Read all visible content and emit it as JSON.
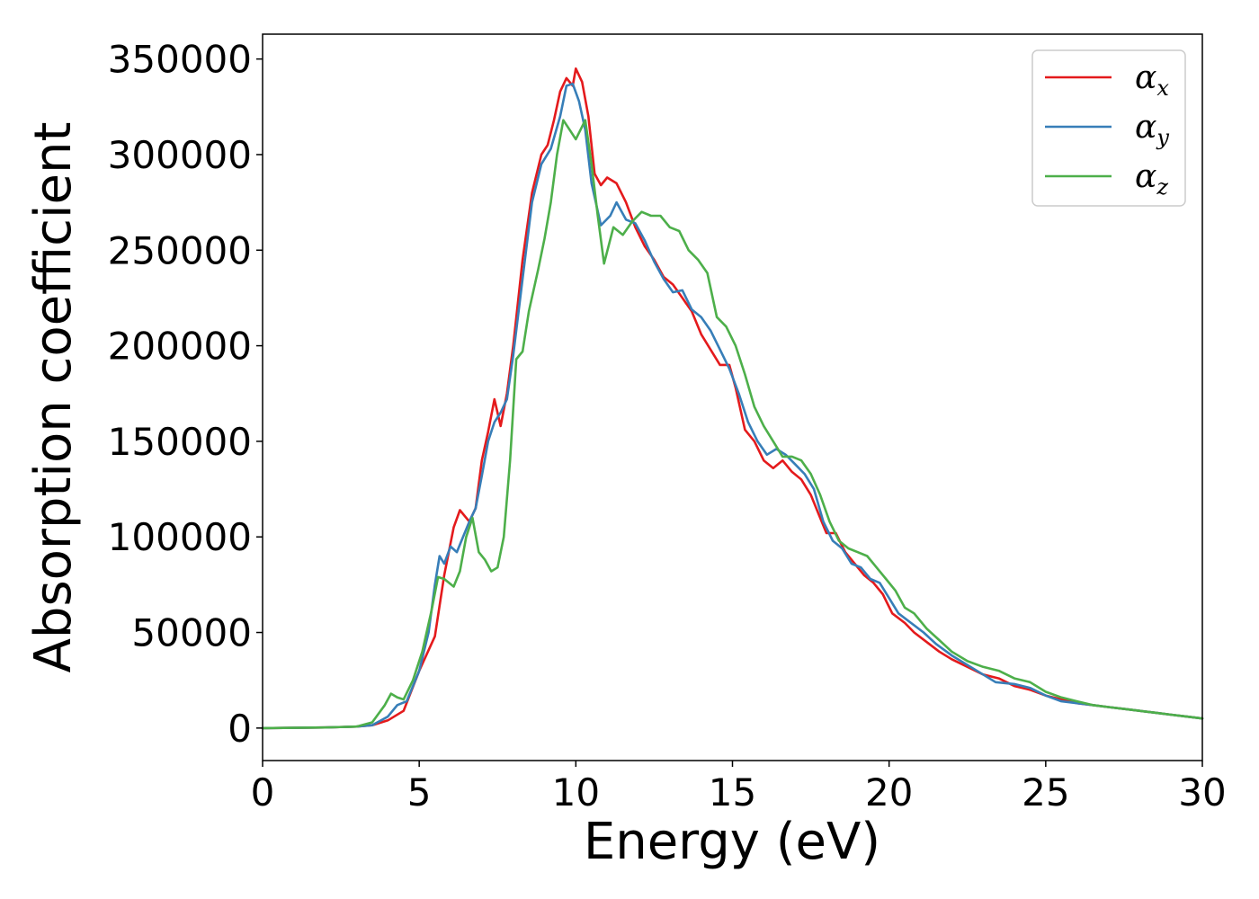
{
  "chart_data": {
    "type": "line",
    "title": "",
    "xlabel": "Energy (eV)",
    "ylabel": "Absorption coefficient",
    "xlim": [
      0,
      30
    ],
    "ylim": [
      -17000,
      363000
    ],
    "xticks": [
      0,
      5,
      10,
      15,
      20,
      25,
      30
    ],
    "xtick_labels": [
      "0",
      "5",
      "10",
      "15",
      "20",
      "25",
      "30"
    ],
    "yticks": [
      0,
      50000,
      100000,
      150000,
      200000,
      250000,
      300000,
      350000
    ],
    "ytick_labels": [
      "0",
      "50000",
      "100000",
      "150000",
      "200000",
      "250000",
      "300000",
      "350000"
    ],
    "grid": false,
    "legend_position": "top-right",
    "series": [
      {
        "name": "αx",
        "name_base": "α",
        "name_sub": "x",
        "color": "#e41a1c",
        "points": [
          [
            0,
            0
          ],
          [
            2,
            300
          ],
          [
            3,
            800
          ],
          [
            3.5,
            1500
          ],
          [
            4,
            4000
          ],
          [
            4.5,
            9000
          ],
          [
            5,
            30000
          ],
          [
            5.5,
            48000
          ],
          [
            5.8,
            80000
          ],
          [
            6.1,
            105000
          ],
          [
            6.3,
            114000
          ],
          [
            6.6,
            108000
          ],
          [
            6.8,
            115000
          ],
          [
            7,
            140000
          ],
          [
            7.2,
            155000
          ],
          [
            7.4,
            172000
          ],
          [
            7.6,
            158000
          ],
          [
            7.8,
            175000
          ],
          [
            8,
            200000
          ],
          [
            8.3,
            245000
          ],
          [
            8.6,
            280000
          ],
          [
            8.9,
            300000
          ],
          [
            9.1,
            305000
          ],
          [
            9.3,
            318000
          ],
          [
            9.5,
            333000
          ],
          [
            9.7,
            340000
          ],
          [
            9.9,
            336000
          ],
          [
            10,
            345000
          ],
          [
            10.2,
            338000
          ],
          [
            10.4,
            320000
          ],
          [
            10.6,
            290000
          ],
          [
            10.8,
            284000
          ],
          [
            11,
            288000
          ],
          [
            11.3,
            285000
          ],
          [
            11.6,
            275000
          ],
          [
            11.9,
            262000
          ],
          [
            12.2,
            252000
          ],
          [
            12.5,
            245000
          ],
          [
            12.8,
            236000
          ],
          [
            13.1,
            232000
          ],
          [
            13.4,
            225000
          ],
          [
            13.7,
            218000
          ],
          [
            14,
            206000
          ],
          [
            14.3,
            198000
          ],
          [
            14.6,
            190000
          ],
          [
            14.9,
            190000
          ],
          [
            15.1,
            178000
          ],
          [
            15.4,
            156000
          ],
          [
            15.7,
            150000
          ],
          [
            16,
            140000
          ],
          [
            16.3,
            136000
          ],
          [
            16.6,
            140000
          ],
          [
            16.9,
            134000
          ],
          [
            17.2,
            130000
          ],
          [
            17.5,
            122000
          ],
          [
            17.8,
            110000
          ],
          [
            18,
            102000
          ],
          [
            18.3,
            102000
          ],
          [
            18.6,
            92000
          ],
          [
            18.9,
            86000
          ],
          [
            19.2,
            80000
          ],
          [
            19.5,
            76000
          ],
          [
            19.8,
            70000
          ],
          [
            20.1,
            60000
          ],
          [
            20.5,
            55000
          ],
          [
            20.8,
            50000
          ],
          [
            21.2,
            45000
          ],
          [
            21.6,
            40000
          ],
          [
            22,
            36000
          ],
          [
            22.5,
            32000
          ],
          [
            23,
            28000
          ],
          [
            23.5,
            26000
          ],
          [
            24,
            22000
          ],
          [
            24.5,
            20000
          ],
          [
            25,
            17000
          ],
          [
            25.5,
            15000
          ],
          [
            26,
            13000
          ],
          [
            26.5,
            12000
          ],
          [
            27,
            11000
          ],
          [
            27.5,
            10000
          ],
          [
            28,
            9000
          ],
          [
            28.5,
            8000
          ],
          [
            29,
            7000
          ],
          [
            29.5,
            6000
          ],
          [
            30,
            5000
          ]
        ]
      },
      {
        "name": "αy",
        "name_base": "α",
        "name_sub": "y",
        "color": "#377eb8",
        "points": [
          [
            0,
            0
          ],
          [
            2,
            300
          ],
          [
            3,
            800
          ],
          [
            3.5,
            1500
          ],
          [
            4,
            6000
          ],
          [
            4.3,
            12000
          ],
          [
            4.6,
            14000
          ],
          [
            5,
            30000
          ],
          [
            5.3,
            50000
          ],
          [
            5.5,
            75000
          ],
          [
            5.65,
            90000
          ],
          [
            5.8,
            86000
          ],
          [
            6,
            95000
          ],
          [
            6.2,
            92000
          ],
          [
            6.4,
            100000
          ],
          [
            6.6,
            108000
          ],
          [
            6.8,
            115000
          ],
          [
            7,
            132000
          ],
          [
            7.2,
            150000
          ],
          [
            7.4,
            160000
          ],
          [
            7.6,
            165000
          ],
          [
            7.8,
            172000
          ],
          [
            8,
            195000
          ],
          [
            8.3,
            235000
          ],
          [
            8.6,
            275000
          ],
          [
            8.9,
            295000
          ],
          [
            9.2,
            303000
          ],
          [
            9.5,
            320000
          ],
          [
            9.7,
            336000
          ],
          [
            9.9,
            337000
          ],
          [
            10.1,
            328000
          ],
          [
            10.3,
            313000
          ],
          [
            10.5,
            285000
          ],
          [
            10.8,
            263000
          ],
          [
            11.1,
            268000
          ],
          [
            11.3,
            275000
          ],
          [
            11.6,
            266000
          ],
          [
            11.9,
            264000
          ],
          [
            12.2,
            255000
          ],
          [
            12.5,
            244000
          ],
          [
            12.8,
            235000
          ],
          [
            13.1,
            228000
          ],
          [
            13.4,
            229000
          ],
          [
            13.7,
            219000
          ],
          [
            14,
            215000
          ],
          [
            14.3,
            208000
          ],
          [
            14.6,
            198000
          ],
          [
            14.9,
            188000
          ],
          [
            15.2,
            175000
          ],
          [
            15.5,
            160000
          ],
          [
            15.8,
            150000
          ],
          [
            16.1,
            143000
          ],
          [
            16.4,
            146000
          ],
          [
            16.7,
            143000
          ],
          [
            17,
            138000
          ],
          [
            17.3,
            133000
          ],
          [
            17.6,
            125000
          ],
          [
            17.9,
            108000
          ],
          [
            18.2,
            98000
          ],
          [
            18.5,
            94000
          ],
          [
            18.8,
            86000
          ],
          [
            19.1,
            84000
          ],
          [
            19.4,
            78000
          ],
          [
            19.7,
            76000
          ],
          [
            20,
            68000
          ],
          [
            20.3,
            60000
          ],
          [
            20.7,
            55000
          ],
          [
            21.1,
            50000
          ],
          [
            21.5,
            44000
          ],
          [
            22,
            38000
          ],
          [
            22.5,
            33000
          ],
          [
            23,
            28000
          ],
          [
            23.4,
            24000
          ],
          [
            24,
            23000
          ],
          [
            24.5,
            21000
          ],
          [
            25,
            17000
          ],
          [
            25.5,
            14000
          ],
          [
            26,
            13000
          ],
          [
            26.5,
            12000
          ],
          [
            27,
            11000
          ],
          [
            27.5,
            10000
          ],
          [
            28,
            9000
          ],
          [
            28.5,
            8000
          ],
          [
            29,
            7000
          ],
          [
            29.5,
            6000
          ],
          [
            30,
            5000
          ]
        ]
      },
      {
        "name": "αz",
        "name_base": "α",
        "name_sub": "z",
        "color": "#4daf4a",
        "points": [
          [
            0,
            0
          ],
          [
            2,
            300
          ],
          [
            3,
            800
          ],
          [
            3.5,
            3000
          ],
          [
            3.9,
            12000
          ],
          [
            4.1,
            18000
          ],
          [
            4.3,
            16000
          ],
          [
            4.5,
            15000
          ],
          [
            4.8,
            25000
          ],
          [
            5.1,
            40000
          ],
          [
            5.4,
            62000
          ],
          [
            5.6,
            79000
          ],
          [
            5.8,
            78000
          ],
          [
            6.1,
            74000
          ],
          [
            6.3,
            82000
          ],
          [
            6.5,
            100000
          ],
          [
            6.7,
            110000
          ],
          [
            6.9,
            92000
          ],
          [
            7.1,
            88000
          ],
          [
            7.3,
            82000
          ],
          [
            7.5,
            84000
          ],
          [
            7.7,
            100000
          ],
          [
            7.9,
            140000
          ],
          [
            8.1,
            193000
          ],
          [
            8.3,
            197000
          ],
          [
            8.5,
            218000
          ],
          [
            8.8,
            240000
          ],
          [
            9,
            256000
          ],
          [
            9.2,
            275000
          ],
          [
            9.4,
            300000
          ],
          [
            9.6,
            318000
          ],
          [
            9.8,
            313000
          ],
          [
            10,
            308000
          ],
          [
            10.3,
            318000
          ],
          [
            10.5,
            295000
          ],
          [
            10.7,
            268000
          ],
          [
            10.9,
            243000
          ],
          [
            11.2,
            262000
          ],
          [
            11.5,
            258000
          ],
          [
            11.8,
            265000
          ],
          [
            12.1,
            270000
          ],
          [
            12.4,
            268000
          ],
          [
            12.7,
            268000
          ],
          [
            13,
            262000
          ],
          [
            13.3,
            260000
          ],
          [
            13.6,
            250000
          ],
          [
            13.9,
            245000
          ],
          [
            14.2,
            238000
          ],
          [
            14.5,
            215000
          ],
          [
            14.8,
            210000
          ],
          [
            15.1,
            200000
          ],
          [
            15.4,
            185000
          ],
          [
            15.7,
            168000
          ],
          [
            16,
            158000
          ],
          [
            16.3,
            150000
          ],
          [
            16.6,
            142000
          ],
          [
            16.9,
            142000
          ],
          [
            17.2,
            140000
          ],
          [
            17.5,
            133000
          ],
          [
            17.8,
            122000
          ],
          [
            18.1,
            108000
          ],
          [
            18.4,
            98000
          ],
          [
            18.7,
            94000
          ],
          [
            19,
            92000
          ],
          [
            19.3,
            90000
          ],
          [
            19.6,
            84000
          ],
          [
            19.9,
            78000
          ],
          [
            20.2,
            72000
          ],
          [
            20.5,
            63000
          ],
          [
            20.8,
            60000
          ],
          [
            21.2,
            52000
          ],
          [
            21.6,
            46000
          ],
          [
            22,
            40000
          ],
          [
            22.5,
            35000
          ],
          [
            23,
            32000
          ],
          [
            23.5,
            30000
          ],
          [
            24,
            26000
          ],
          [
            24.5,
            24000
          ],
          [
            25,
            19000
          ],
          [
            25.5,
            16000
          ],
          [
            26,
            14000
          ],
          [
            26.5,
            12000
          ],
          [
            27,
            11000
          ],
          [
            27.5,
            10000
          ],
          [
            28,
            9000
          ],
          [
            28.5,
            8000
          ],
          [
            29,
            7000
          ],
          [
            29.5,
            6000
          ],
          [
            30,
            5000
          ]
        ]
      }
    ]
  }
}
